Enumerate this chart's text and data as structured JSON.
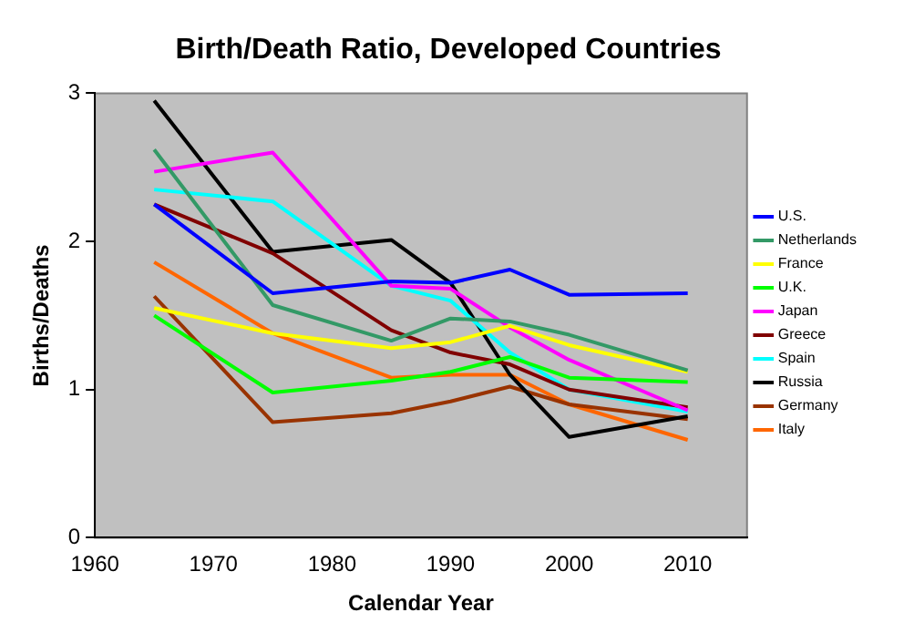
{
  "chart_data": {
    "type": "line",
    "title": "Birth/Death Ratio, Developed Countries",
    "xlabel": "Calendar Year",
    "ylabel": "Births/Deaths",
    "x": [
      1965,
      1975,
      1985,
      1990,
      1995,
      2000,
      2010
    ],
    "series": [
      {
        "name": "U.S.",
        "color": "#0000ff",
        "values": [
          2.25,
          1.65,
          1.73,
          1.72,
          1.81,
          1.64,
          1.65
        ]
      },
      {
        "name": "Netherlands",
        "color": "#339966",
        "values": [
          2.62,
          1.57,
          1.33,
          1.48,
          1.46,
          1.37,
          1.13
        ]
      },
      {
        "name": "France",
        "color": "#ffff00",
        "values": [
          1.55,
          1.38,
          1.28,
          1.32,
          1.43,
          1.3,
          1.12
        ]
      },
      {
        "name": "U.K.",
        "color": "#00ff00",
        "values": [
          1.5,
          0.98,
          1.06,
          1.12,
          1.22,
          1.08,
          1.05
        ]
      },
      {
        "name": "Japan",
        "color": "#ff00ff",
        "values": [
          2.47,
          2.6,
          1.7,
          1.68,
          1.42,
          1.2,
          0.86
        ]
      },
      {
        "name": "Greece",
        "color": "#800000",
        "values": [
          2.25,
          1.92,
          1.4,
          1.25,
          1.17,
          1.0,
          0.88
        ]
      },
      {
        "name": "Spain",
        "color": "#00ffff",
        "values": [
          2.35,
          2.27,
          1.7,
          1.6,
          1.25,
          1.0,
          0.85
        ]
      },
      {
        "name": "Russia",
        "color": "#000000",
        "values": [
          2.95,
          1.93,
          2.01,
          1.72,
          1.1,
          0.68,
          0.82
        ]
      },
      {
        "name": "Germany",
        "color": "#993300",
        "values": [
          1.63,
          0.78,
          0.84,
          0.92,
          1.02,
          0.9,
          0.8
        ]
      },
      {
        "name": "Italy",
        "color": "#ff6600",
        "values": [
          1.86,
          1.38,
          1.08,
          1.1,
          1.1,
          0.9,
          0.66
        ]
      }
    ],
    "xlim": [
      1960,
      2015
    ],
    "xticks": [
      1960,
      1970,
      1980,
      1990,
      2000,
      2010
    ],
    "ylim": [
      0,
      3
    ],
    "yticks": [
      0,
      1,
      2,
      3
    ],
    "grid": false,
    "legend": "right",
    "marker": "none",
    "line_style": "solid"
  }
}
